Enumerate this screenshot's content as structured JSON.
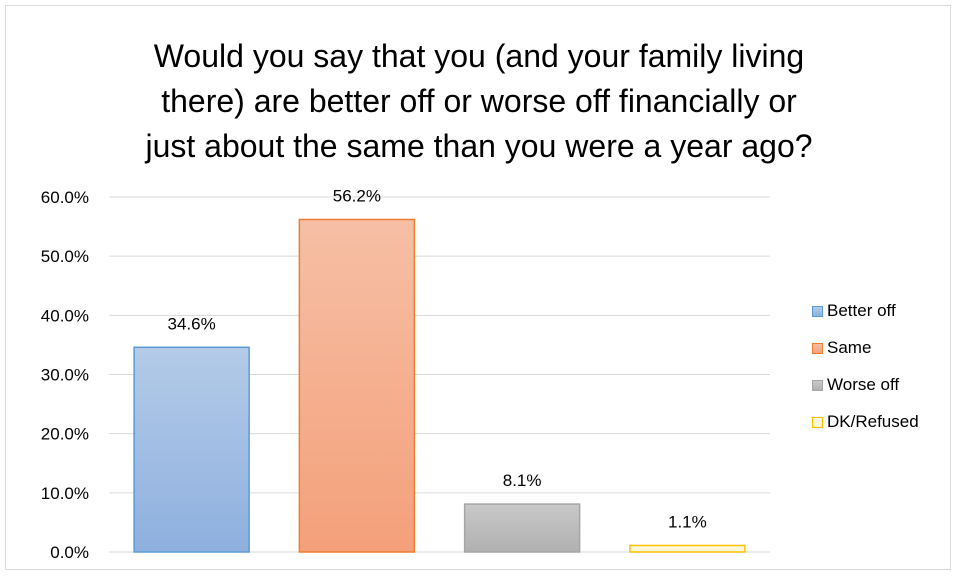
{
  "chart_data": {
    "type": "bar",
    "title_lines": [
      "Would you say that you (and your family living",
      "there) are better off or worse off financially or",
      "just about the same than you were a year ago?"
    ],
    "categories": [
      "Better off",
      "Same",
      "Worse off",
      "DK/Refused"
    ],
    "values": [
      34.6,
      56.2,
      8.1,
      1.1
    ],
    "data_labels": [
      "34.6%",
      "56.2%",
      "8.1%",
      "1.1%"
    ],
    "y_ticks": [
      "0.0%",
      "10.0%",
      "20.0%",
      "30.0%",
      "40.0%",
      "50.0%",
      "60.0%"
    ],
    "ylim": [
      0,
      60
    ],
    "grid": true,
    "legend_position": "right",
    "colors": {
      "fill_top": [
        "#b4cbe8",
        "#f6bfa5",
        "#c9c9c9",
        "#fffbe6"
      ],
      "fill_bottom": [
        "#8eb0df",
        "#f4a07a",
        "#b0b0b0",
        "#fff5cc"
      ],
      "stroke": [
        "#5b9bd5",
        "#ed7d31",
        "#a5a5a5",
        "#ffc000"
      ]
    }
  }
}
